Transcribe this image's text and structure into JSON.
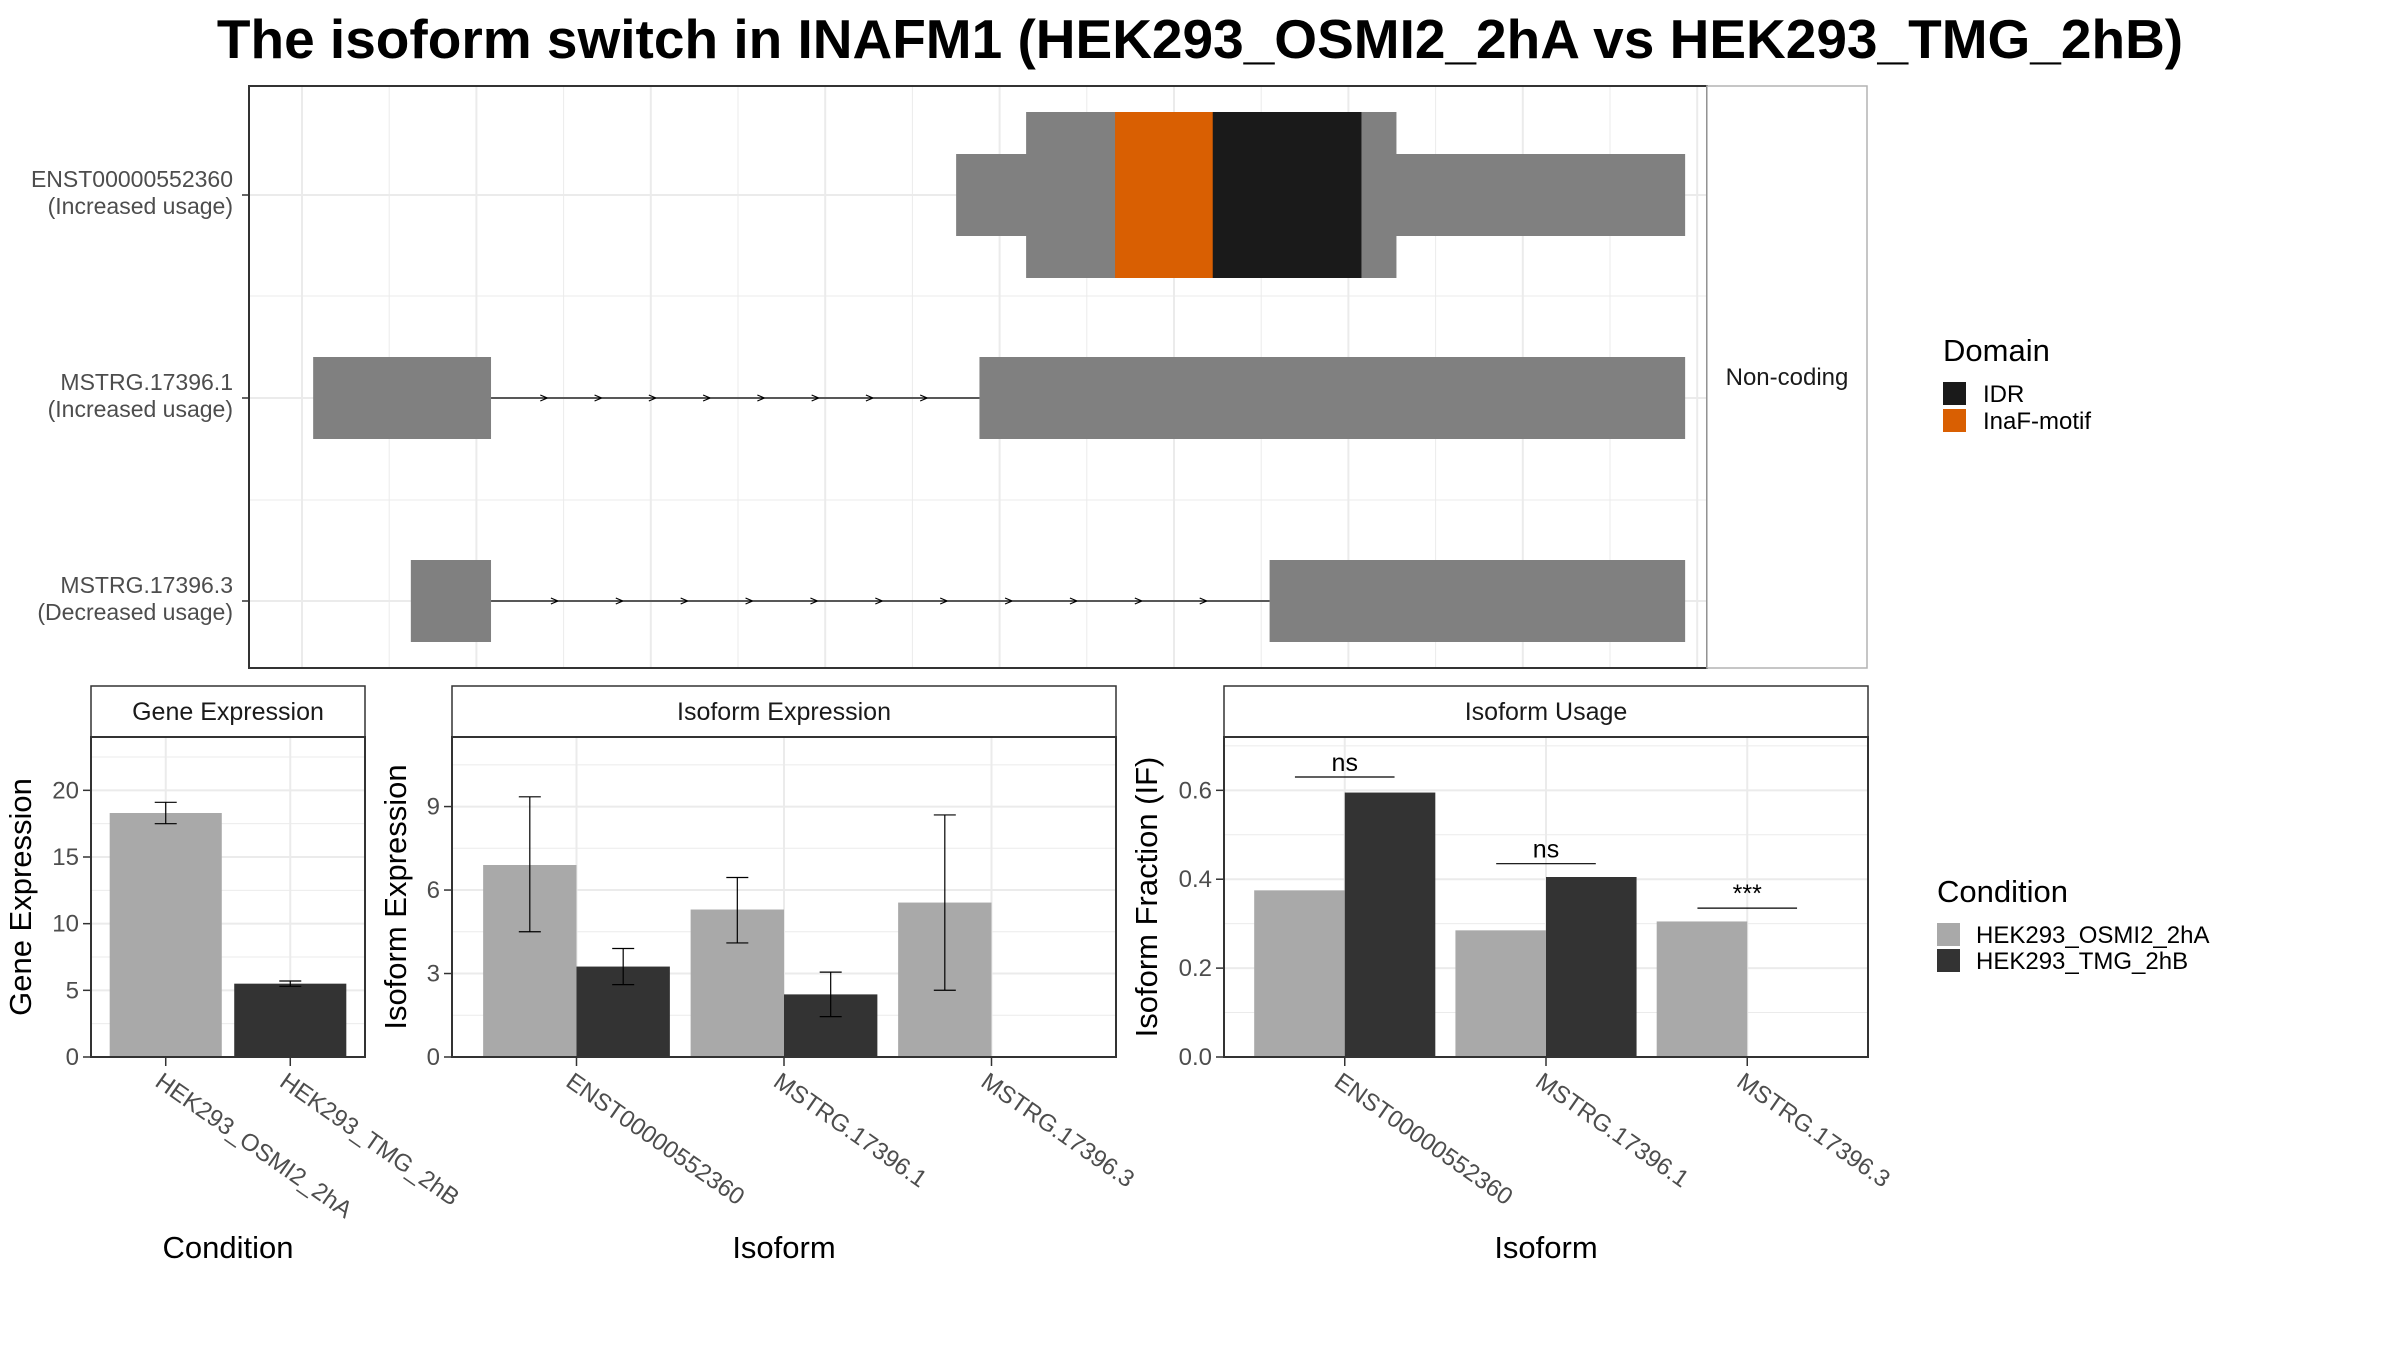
{
  "title": "The isoform switch in INAFM1 (HEK293_OSMI2_2hA vs HEK293_TMG_2hB)",
  "colors": {
    "cond_a": "#a9a9a9",
    "cond_b": "#333333",
    "exon": "#808080",
    "idr": "#1a1a1a",
    "inaf": "#d95f02",
    "grid": "#ebebeb",
    "frame": "#333333",
    "strip_fill": "#ffffff"
  },
  "chart_data": [
    {
      "type": "gene-structure",
      "panel": "transcripts",
      "strip_label": "Non-coding",
      "transcripts": [
        {
          "name": "ENST00000552360",
          "status": "(Increased usage)",
          "coding": true,
          "utr": [
            0.485,
            0.985
          ],
          "cds": [
            0.533,
            0.787
          ],
          "domains": [
            {
              "name": "InaF-motif",
              "range": [
                0.594,
                0.699
              ]
            },
            {
              "name": "IDR",
              "range": [
                0.661,
                0.763
              ]
            }
          ],
          "exons": [
            [
              0.485,
              0.985
            ]
          ],
          "arrows": 0
        },
        {
          "name": "MSTRG.17396.1",
          "status": "(Increased usage)",
          "coding": false,
          "exons": [
            [
              0.044,
              0.166
            ],
            [
              0.501,
              0.985
            ]
          ],
          "arrows": 8
        },
        {
          "name": "MSTRG.17396.3",
          "status": "(Decreased usage)",
          "coding": false,
          "exons": [
            [
              0.111,
              0.166
            ],
            [
              0.7,
              0.985
            ]
          ],
          "arrows": 11
        }
      ],
      "domain_legend": {
        "title": "Domain",
        "entries": [
          {
            "name": "IDR",
            "color": "#1a1a1a"
          },
          {
            "name": "InaF-motif",
            "color": "#d95f02"
          }
        ]
      }
    },
    {
      "type": "bar",
      "panel": "gene_expression",
      "strip": "Gene Expression",
      "xlabel": "Condition",
      "ylabel": "Gene Expression",
      "ylim": [
        0,
        24
      ],
      "yticks": [
        0,
        5,
        10,
        15,
        20
      ],
      "categories": [
        "HEK293_OSMI2_2hA",
        "HEK293_TMG_2hB"
      ],
      "values": [
        18.3,
        5.5
      ],
      "errors": [
        [
          17.5,
          19.1
        ],
        [
          5.3,
          5.7
        ]
      ]
    },
    {
      "type": "bar",
      "panel": "isoform_expression",
      "strip": "Isoform Expression",
      "xlabel": "Isoform",
      "ylabel": "Isoform Expression",
      "ylim": [
        0,
        11.5
      ],
      "yticks": [
        0,
        3,
        6,
        9
      ],
      "categories": [
        "ENST00000552360",
        "MSTRG.17396.1",
        "MSTRG.17396.3"
      ],
      "series": [
        {
          "name": "HEK293_OSMI2_2hA",
          "values": [
            6.9,
            5.3,
            5.55
          ],
          "errors": [
            [
              4.5,
              9.35
            ],
            [
              4.1,
              6.45
            ],
            [
              2.4,
              8.7
            ]
          ]
        },
        {
          "name": "HEK293_TMG_2hB",
          "values": [
            3.25,
            2.25,
            0
          ],
          "errors": [
            [
              2.6,
              3.9
            ],
            [
              1.45,
              3.05
            ],
            [
              0,
              0
            ]
          ]
        }
      ]
    },
    {
      "type": "bar",
      "panel": "isoform_usage",
      "strip": "Isoform Usage",
      "xlabel": "Isoform",
      "ylabel": "Isoform Fraction (IF)",
      "ylim": [
        0,
        0.72
      ],
      "yticks": [
        0,
        0.2,
        0.4,
        0.6
      ],
      "ytick_labels": [
        "0.0",
        "0.2",
        "0.4",
        "0.6"
      ],
      "categories": [
        "ENST00000552360",
        "MSTRG.17396.1",
        "MSTRG.17396.3"
      ],
      "series": [
        {
          "name": "HEK293_OSMI2_2hA",
          "values": [
            0.375,
            0.285,
            0.305
          ]
        },
        {
          "name": "HEK293_TMG_2hB",
          "values": [
            0.595,
            0.405,
            0
          ]
        }
      ],
      "significance": [
        {
          "label": "ns",
          "y": 0.63
        },
        {
          "label": "ns",
          "y": 0.435
        },
        {
          "label": "***",
          "y": 0.335
        }
      ]
    }
  ],
  "condition_legend": {
    "title": "Condition",
    "entries": [
      {
        "name": "HEK293_OSMI2_2hA",
        "color": "#a9a9a9"
      },
      {
        "name": "HEK293_TMG_2hB",
        "color": "#333333"
      }
    ]
  }
}
